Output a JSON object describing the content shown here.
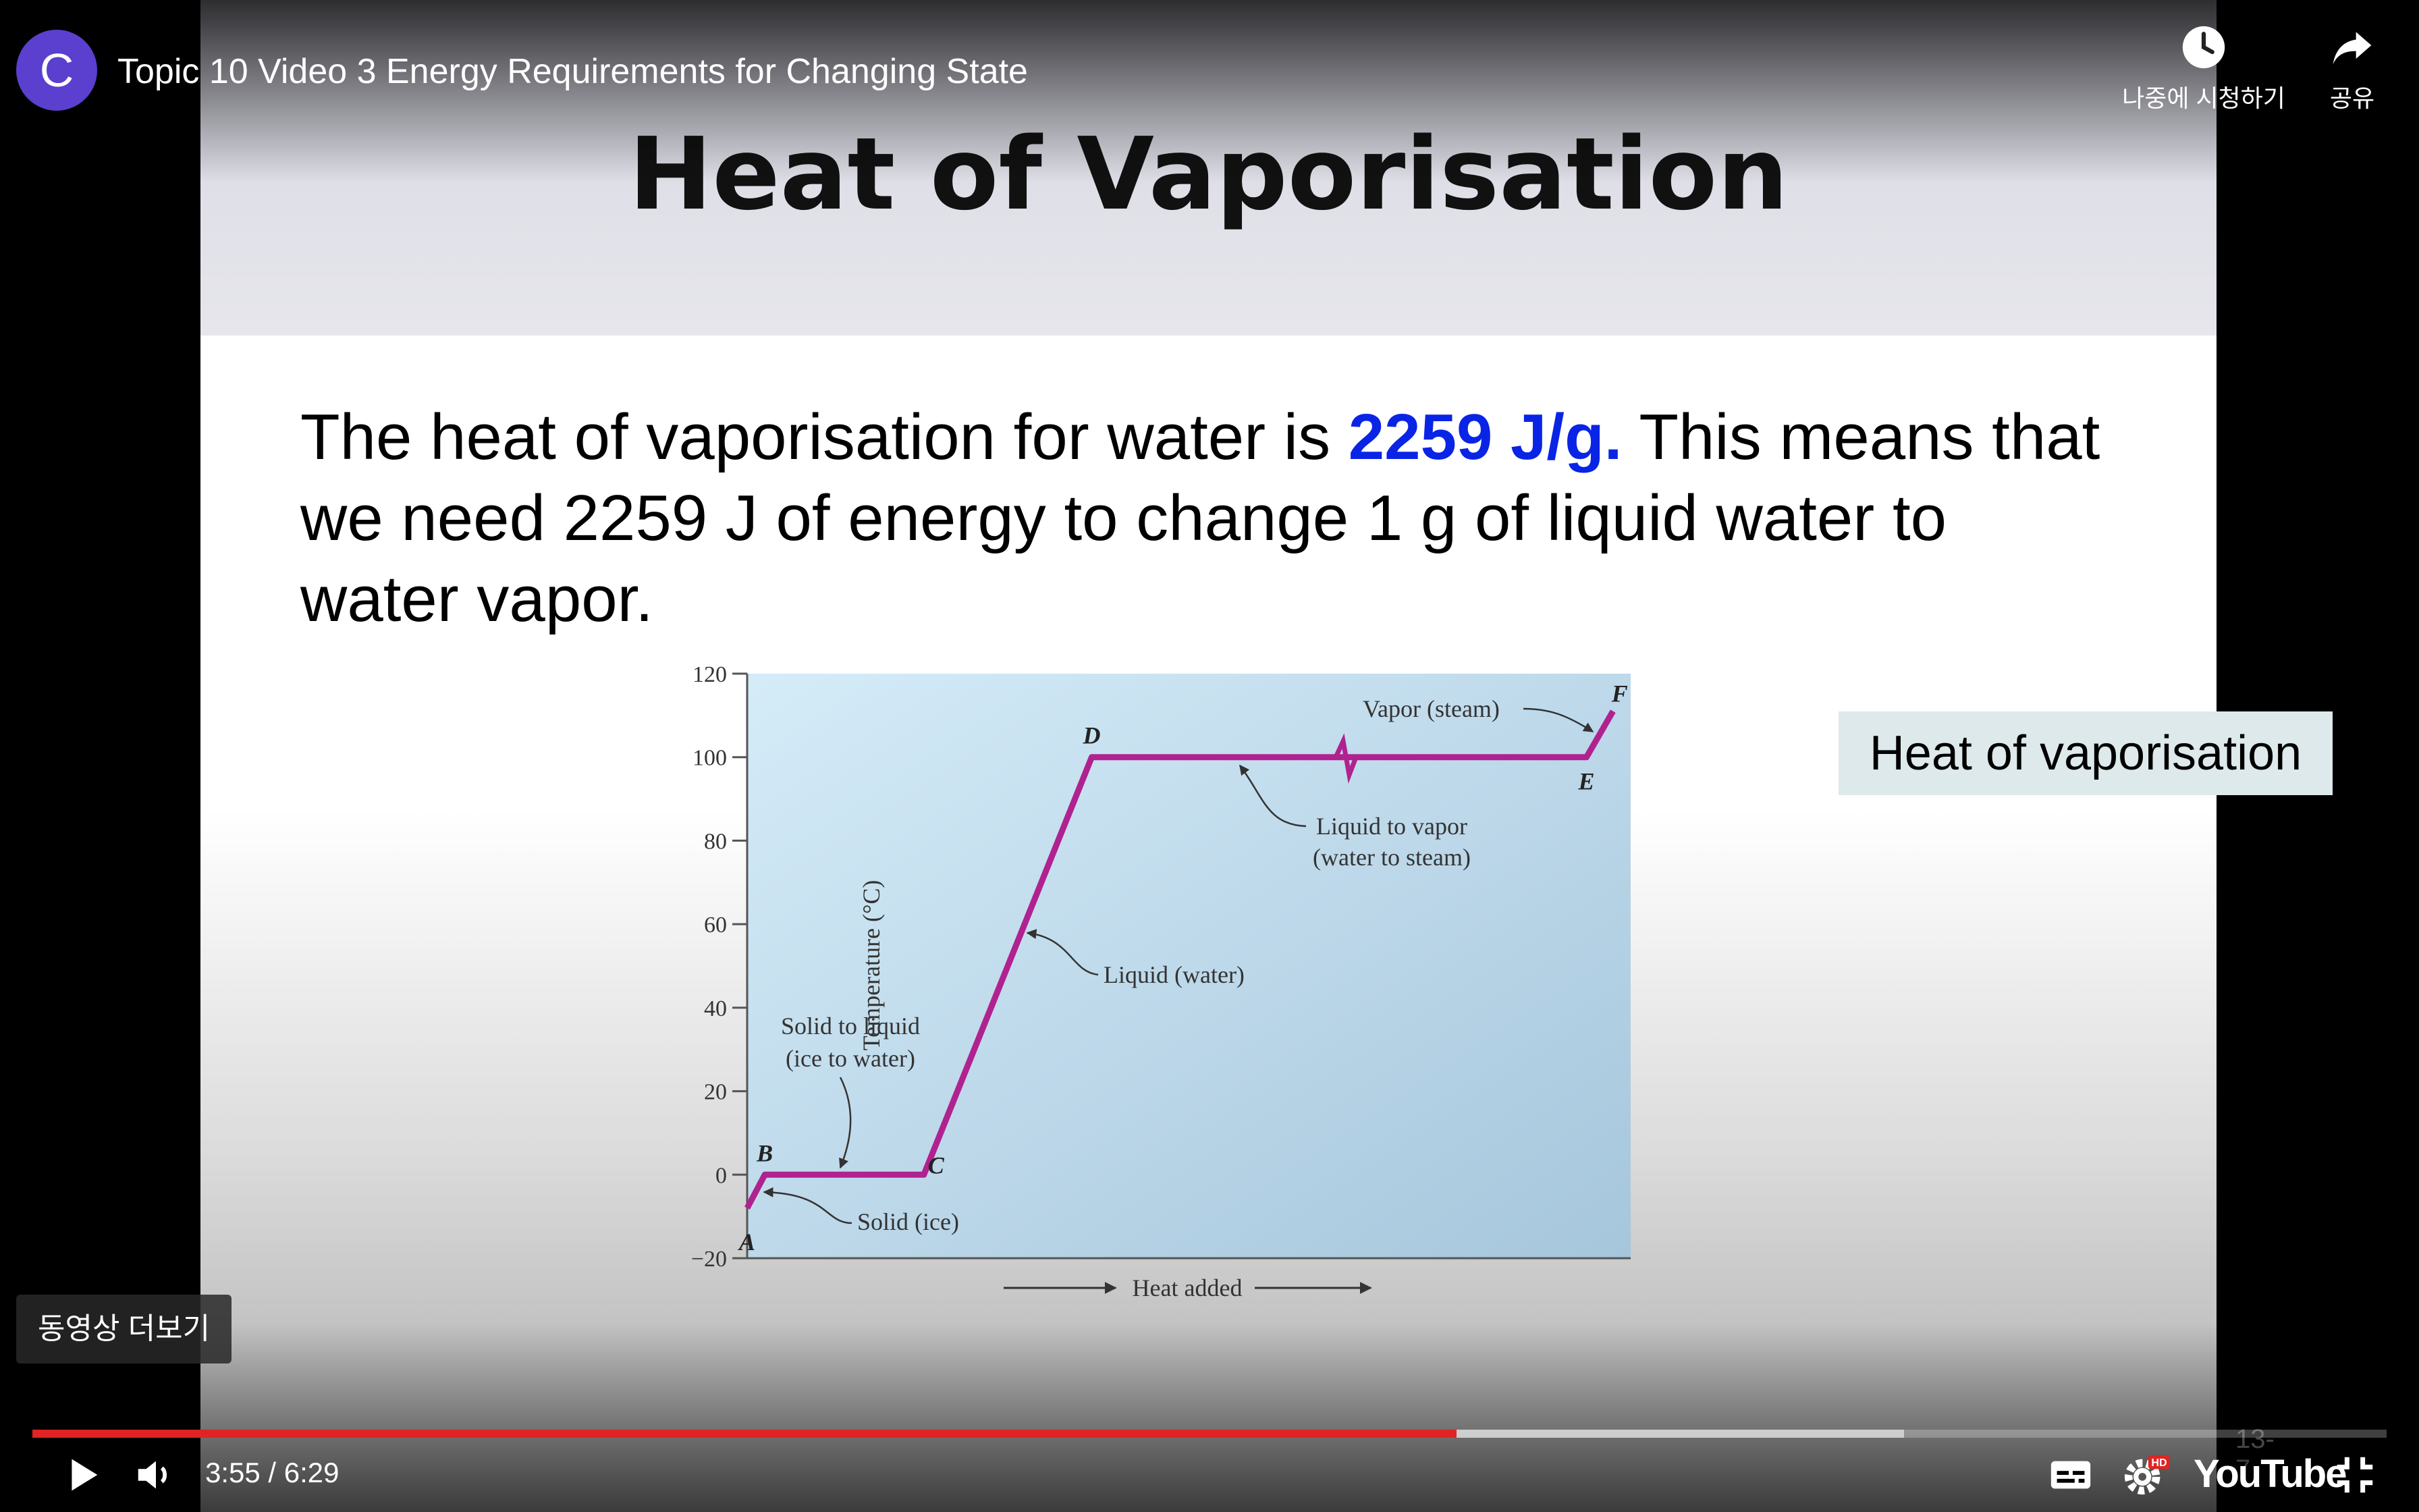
{
  "channel": {
    "avatar_letter": "C"
  },
  "video": {
    "title": "Topic 10 Video 3 Energy Requirements for Changing State"
  },
  "top_actions": {
    "watch_later": "나중에 시청하기",
    "share": "공유"
  },
  "more_videos": "동영상 더보기",
  "slide": {
    "title": "Heat of Vaporisation",
    "body_pre": "The heat of vaporisation for water is ",
    "body_highlight": "2259 J/g.",
    "body_post": "  This means that we need 2259 J of energy to change 1 g of liquid water to water vapor.",
    "callout": "Heat of vaporisation",
    "slide_number": "13-7"
  },
  "chart_data": {
    "type": "line",
    "xlabel": "Heat added",
    "ylabel": "Temperature (°C)",
    "ylim": [
      -20,
      120
    ],
    "yticks": [
      120,
      100,
      80,
      60,
      40,
      20,
      0,
      -20
    ],
    "points": [
      {
        "label": "A",
        "x": 0,
        "y": -8
      },
      {
        "label": "B",
        "x": 2,
        "y": 0
      },
      {
        "label": "C",
        "x": 20,
        "y": 0
      },
      {
        "label": "D",
        "x": 39,
        "y": 100
      },
      {
        "label": "E",
        "x": 95,
        "y": 100
      },
      {
        "label": "F",
        "x": 98,
        "y": 111
      }
    ],
    "annotations": [
      {
        "text": "Solid (ice)"
      },
      {
        "text": "Solid to liquid",
        "text2": "(ice to water)"
      },
      {
        "text": "Liquid (water)"
      },
      {
        "text": "Liquid to vapor",
        "text2": "(water to steam)"
      },
      {
        "text": "Vapor (steam)"
      }
    ],
    "line_color": "#b0228f",
    "bg_color": "#c9e2f3"
  },
  "player": {
    "current_time": "3:55",
    "duration": "6:29",
    "time_display": "3:55 / 6:29",
    "progress_played": 0.605,
    "progress_buffered": 0.795,
    "brand": "YouTube",
    "progress_color": "#e02424"
  }
}
